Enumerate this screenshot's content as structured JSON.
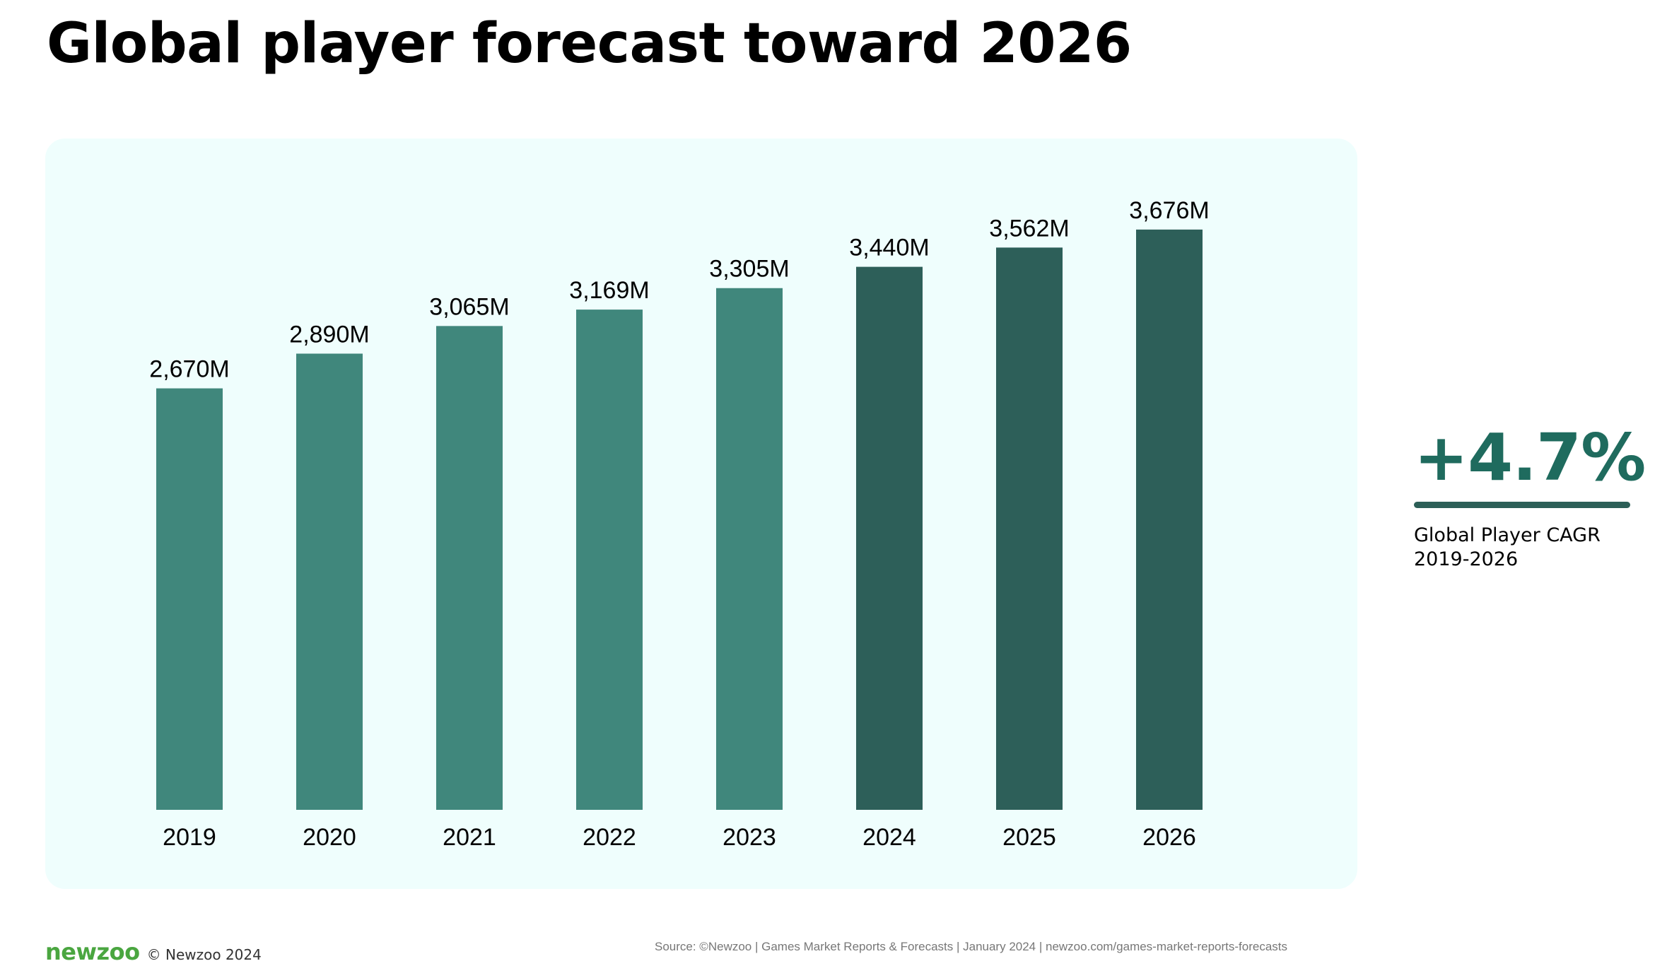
{
  "header": {
    "title": "Global player forecast toward 2026"
  },
  "chart_data": {
    "type": "bar",
    "title": "Global player forecast toward 2026",
    "xlabel": "",
    "ylabel": "",
    "ylim": [
      0,
      3850
    ],
    "grid": false,
    "categories": [
      "2019",
      "2020",
      "2021",
      "2022",
      "2023",
      "2024",
      "2025",
      "2026"
    ],
    "values": [
      2670,
      2890,
      3065,
      3169,
      3305,
      3440,
      3562,
      3676
    ],
    "value_labels": [
      "2,670M",
      "2,890M",
      "3,065M",
      "3,169M",
      "3,305M",
      "3,440M",
      "3,562M",
      "3,676M"
    ],
    "unit": "M",
    "colors": [
      "#40877c",
      "#40877c",
      "#40877c",
      "#40877c",
      "#40877c",
      "#2d5f59",
      "#2d5f59",
      "#2d5f59"
    ]
  },
  "kpi": {
    "value": "+4.7%",
    "caption_line1": "Global Player CAGR",
    "caption_line2": "2019-2026"
  },
  "footer": {
    "brand": "newzoo",
    "copyright": "© Newzoo 2024",
    "source": "Source: ©Newzoo | Games Market Reports & Forecasts | January 2024 | newzoo.com/games-market-reports-forecasts"
  }
}
